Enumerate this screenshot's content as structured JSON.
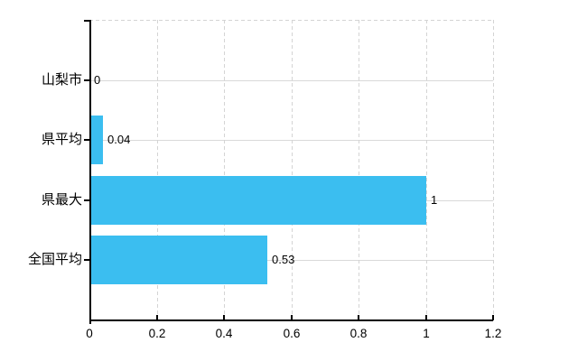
{
  "chart_data": {
    "type": "bar",
    "orientation": "horizontal",
    "title": "",
    "categories": [
      "山梨市",
      "県平均",
      "県最大",
      "全国平均"
    ],
    "values": [
      0,
      0.04,
      1,
      0.53
    ],
    "value_labels": [
      "0",
      "0.04",
      "1",
      "0.53"
    ],
    "x_ticks": [
      0,
      0.2,
      0.4,
      0.6,
      0.8,
      1,
      1.2
    ],
    "x_tick_labels": [
      "0",
      "0.2",
      "0.4",
      "0.6",
      "0.8",
      "1",
      "1.2"
    ],
    "xlim": [
      0,
      1.2
    ],
    "grid": true,
    "legend": false,
    "colors": {
      "bar": "#3bbef0",
      "grid_solid": "#d9d9d9",
      "grid_dashed": "#d4d4d4",
      "axis": "#000000",
      "text": "#000000",
      "background": "#ffffff"
    }
  }
}
